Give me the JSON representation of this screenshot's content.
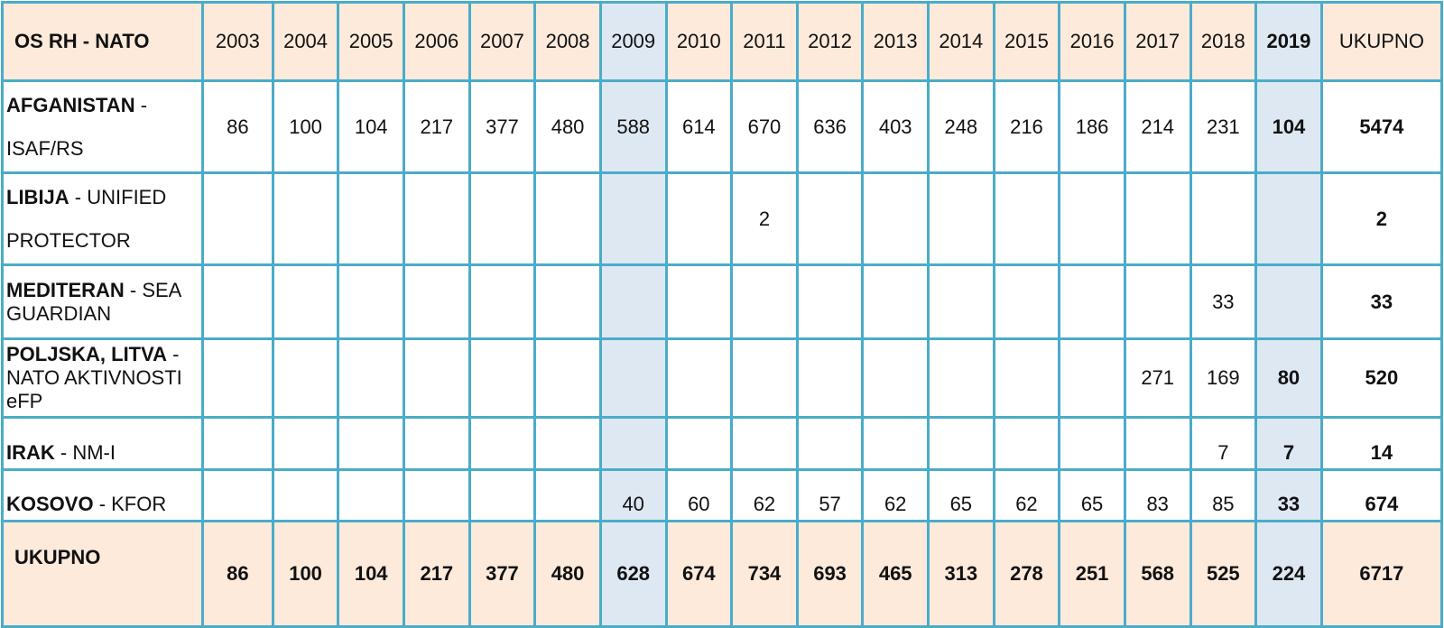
{
  "header": {
    "corner": "OS RH - NATO",
    "years": [
      "2003",
      "2004",
      "2005",
      "2006",
      "2007",
      "2008",
      "2009",
      "2010",
      "2011",
      "2012",
      "2013",
      "2014",
      "2015",
      "2016",
      "2017",
      "2018",
      "2019"
    ],
    "total": "UKUPNO"
  },
  "rows": [
    {
      "bold": "AFGANISTAN",
      "rest": " - ISAF/RS",
      "values": [
        "86",
        "100",
        "104",
        "217",
        "377",
        "480",
        "588",
        "614",
        "670",
        "636",
        "403",
        "248",
        "216",
        "186",
        "214",
        "231",
        "104"
      ],
      "total": "5474"
    },
    {
      "bold": "LIBIJA",
      "rest": " - UNIFIED PROTECTOR",
      "values": [
        "",
        "",
        "",
        "",
        "",
        "",
        "",
        "",
        "2",
        "",
        "",
        "",
        "",
        "",
        "",
        "",
        ""
      ],
      "total": "2"
    },
    {
      "bold": "MEDITERAN",
      "rest": " - SEA GUARDIAN",
      "values": [
        "",
        "",
        "",
        "",
        "",
        "",
        "",
        "",
        "",
        "",
        "",
        "",
        "",
        "",
        "",
        "33",
        ""
      ],
      "total": "33"
    },
    {
      "bold": "POLJSKA, LITVA",
      "rest": " - NATO AKTIVNOSTI eFP",
      "values": [
        "",
        "",
        "",
        "",
        "",
        "",
        "",
        "",
        "",
        "",
        "",
        "",
        "",
        "",
        "271",
        "169",
        "80"
      ],
      "total": "520"
    },
    {
      "bold": "IRAK",
      "rest": " - NM-I",
      "values": [
        "",
        "",
        "",
        "",
        "",
        "",
        "",
        "",
        "",
        "",
        "",
        "",
        "",
        "",
        "",
        "7",
        "7"
      ],
      "total": "14"
    },
    {
      "bold": "KOSOVO",
      "rest": " - KFOR",
      "values": [
        "",
        "",
        "",
        "",
        "",
        "",
        "40",
        "60",
        "62",
        "57",
        "62",
        "65",
        "62",
        "65",
        "83",
        "85",
        "33"
      ],
      "total": "674"
    }
  ],
  "footer": {
    "label": "UKUPNO",
    "values": [
      "86",
      "100",
      "104",
      "217",
      "377",
      "480",
      "628",
      "674",
      "734",
      "693",
      "465",
      "313",
      "278",
      "251",
      "568",
      "525",
      "224"
    ],
    "total": "6717"
  },
  "colors": {
    "header_bg": "#fdeadb",
    "highlight_col": "#dde8f3",
    "border": "#4aacc9"
  }
}
